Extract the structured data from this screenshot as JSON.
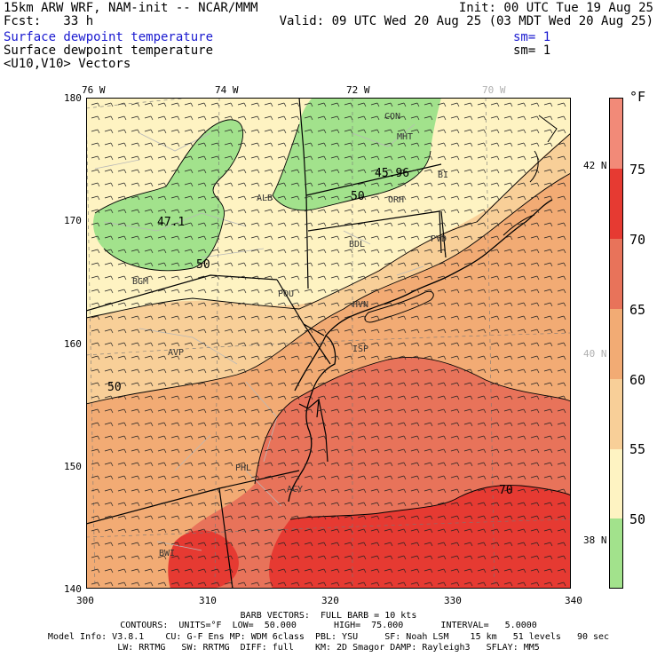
{
  "header": {
    "line1_left": "15km ARW WRF, NAM-init -- NCAR/MMM",
    "line1_right": "Init: 00 UTC Tue 19 Aug 25",
    "line2_left": "Fcst:   33 h",
    "line2_right": "Valid: 09 UTC Wed 20 Aug 25 (03 MDT Wed 20 Aug 25)",
    "line3_left": "Surface dewpoint temperature",
    "line3_right": "sm= 1",
    "line4_left": "Surface dewpoint temperature",
    "line4_right": "sm= 1",
    "line5_left": "<U10,V10> Vectors"
  },
  "map": {
    "lon_labels": [
      "76 W",
      "74 W",
      "72 W",
      "70 W"
    ],
    "lat_labels": [
      "42 N",
      "40 N",
      "38 N"
    ],
    "x_ticks": [
      "300",
      "310",
      "320",
      "330",
      "340"
    ],
    "y_ticks": [
      "180",
      "170",
      "160",
      "150",
      "140"
    ],
    "cities": [
      "CON",
      "MHT",
      "ALB",
      "BDL",
      "PVD",
      "BGM",
      "POU",
      "HVN",
      "AVP",
      "ISP",
      "PHL",
      "ACY",
      "BWI",
      "BI",
      "ORH"
    ],
    "contour_labels": [
      "45.96",
      "47.1",
      "50",
      "50",
      "50",
      "70"
    ],
    "colors": {
      "below50": "#a2e28c",
      "50to55": "#fef3c2",
      "55to60": "#f8cf98",
      "60to65": "#f2ab74",
      "65to70": "#e8735a",
      "70to75": "#e63a32",
      "above75": "#f28a78"
    }
  },
  "colorbar": {
    "unit": "°F",
    "labels": [
      "75",
      "70",
      "65",
      "60",
      "55",
      "50"
    ]
  },
  "footer": {
    "line1": "BARB VECTORS:  FULL BARB = 10 kts",
    "line2": "CONTOURS:  UNITS=°F  LOW=  50.000       HIGH=  75.000       INTERVAL=   5.0000",
    "line3": "Model Info: V3.8.1    CU: G-F Ens MP: WDM 6class  PBL: YSU     SF: Noah LSM    15 km   51 levels   90 sec",
    "line4": "LW: RRTMG   SW: RRTMG  DIFF: full    KM: 2D Smagor DAMP: Rayleigh3   SFLAY: MM5"
  }
}
